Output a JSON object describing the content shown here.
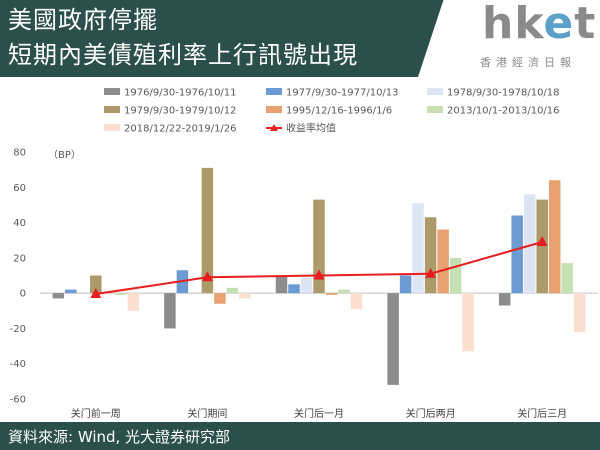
{
  "header": {
    "line1": "美國政府停擺",
    "line2": "短期內美債殖利率上行訊號出現",
    "logo_text_main": "hket",
    "logo_text_sub": "香港經濟日報"
  },
  "footer": {
    "source": "資料來源: Wind, 光大證券研究部"
  },
  "chart_data": {
    "type": "bar",
    "unit_label": "（BP）",
    "categories": [
      "关门前一周",
      "关门期间",
      "关门后一月",
      "关门后两月",
      "关门后三月"
    ],
    "ylim": [
      -60,
      80
    ],
    "yticks": [
      -60,
      -40,
      -20,
      0,
      20,
      40,
      60,
      80
    ],
    "legend_position": "top",
    "series": [
      {
        "name": "1976/9/30-1976/10/11",
        "color": "#8c8c8c",
        "values": [
          -3,
          -20,
          10,
          -52,
          -7
        ]
      },
      {
        "name": "1977/9/30-1977/10/13",
        "color": "#6b9bd2",
        "values": [
          2,
          13,
          5,
          10,
          44
        ]
      },
      {
        "name": "1978/9/30-1978/10/18",
        "color": "#dde5f5",
        "values": [
          0,
          0,
          9,
          51,
          56
        ]
      },
      {
        "name": "1979/9/30-1979/10/12",
        "color": "#ad9a6b",
        "values": [
          10,
          71,
          53,
          43,
          53
        ]
      },
      {
        "name": "1995/12/16-1996/1/6",
        "color": "#e8a171",
        "values": [
          0,
          -6,
          -1,
          36,
          64
        ]
      },
      {
        "name": "2013/10/1-2013/10/16",
        "color": "#c7e0b2",
        "values": [
          -1,
          3,
          2,
          20,
          17
        ]
      },
      {
        "name": "2018/12/22-2019/1/26",
        "color": "#fbe0d2",
        "values": [
          -10,
          -3,
          -9,
          -33,
          -22
        ]
      }
    ],
    "line_series": {
      "name": "收益率均值",
      "color": "#e81e1e",
      "values": [
        -0.5,
        9,
        10,
        11,
        29
      ]
    }
  }
}
